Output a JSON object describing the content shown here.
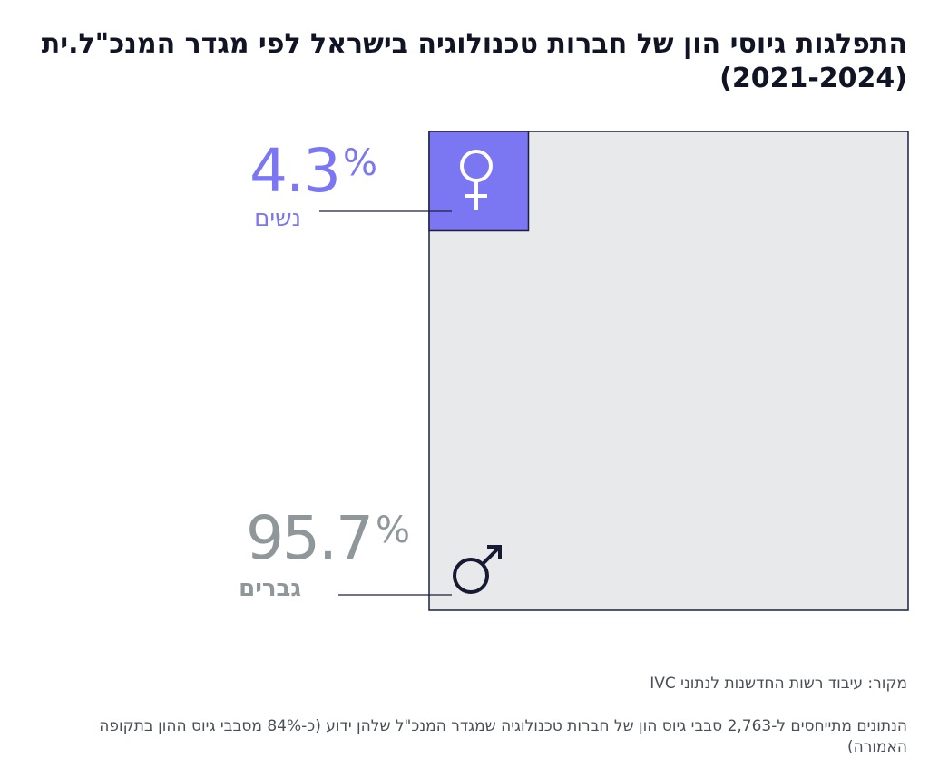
{
  "title_line1": "התפלגות גיוסי הון של חברות טכנולוגיה בישראל לפי מגדר המנכ\"ל.ית",
  "title_line2": "(2021-2024)",
  "chart_data": {
    "type": "area",
    "categories": [
      "נשים",
      "גברים"
    ],
    "values": [
      4.3,
      95.7
    ],
    "unit": "%",
    "title": "התפלגות גיוסי הון של חברות טכנולוגיה בישראל לפי מגדר המנכ\"ל.ית (2021-2024)"
  },
  "labels": {
    "women_value": "4.3",
    "women_unit": "%",
    "women_label": "נשים",
    "men_value": "95.7",
    "men_unit": "%",
    "men_label": "גברים"
  },
  "icons": {
    "women": "female-symbol-icon",
    "men": "male-symbol-icon"
  },
  "colors": {
    "women": "#7b76f2",
    "men": "#8f979a",
    "box_fill": "#e8e9ea",
    "box_stroke": "#1c2040"
  },
  "source": "מקור: עיבוד רשות החדשנות לנתוני IVC",
  "note": "הנתונים מתייחסים ל-2,763 סבבי גיוס הון של חברות טכנולוגיה שמגדר המנכ\"ל שלהן ידוע (כ-84% מסבבי גיוס ההון בתקופה האמורה)"
}
